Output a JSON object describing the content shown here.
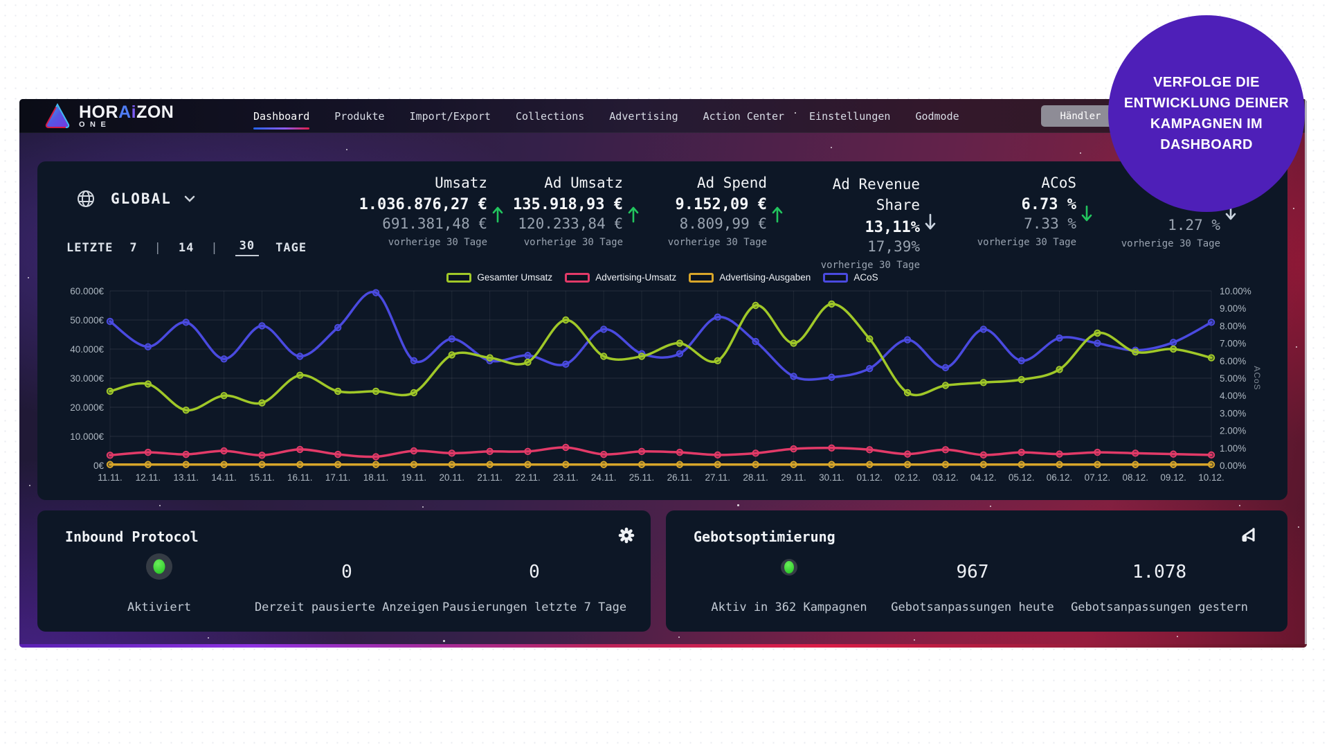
{
  "brand": {
    "name_pre": "HOR",
    "accent_a": "A",
    "accent_i": "i",
    "name_post": "ZON",
    "subtitle": "ONE"
  },
  "nav": {
    "items": [
      {
        "label": "Dashboard",
        "active": true
      },
      {
        "label": "Produkte",
        "active": false
      },
      {
        "label": "Import/Export",
        "active": false
      },
      {
        "label": "Collections",
        "active": false
      },
      {
        "label": "Advertising",
        "active": false
      },
      {
        "label": "Action Center",
        "active": false
      },
      {
        "label": "Einstellungen",
        "active": false
      },
      {
        "label": "Godmode",
        "active": false
      }
    ],
    "merchant_button": "Händler"
  },
  "promo": {
    "text": "VERFOLGE DIE ENTWICKLUNG DEINER KAMPAGNEN IM DASHBOARD",
    "bg": "#4e1fb8"
  },
  "scope": {
    "label": "GLOBAL"
  },
  "range": {
    "prefix": "LETZTE",
    "options": [
      "7",
      "14",
      "30"
    ],
    "active": "30",
    "suffix": "TAGE"
  },
  "stats": [
    {
      "title": "Umsatz",
      "value": "1.036.876,27 €",
      "prev": "691.381,48 €",
      "caption": "vorherige 30 Tage",
      "trend": "up",
      "trend_color": "#22c55e"
    },
    {
      "title": "Ad Umsatz",
      "value": "135.918,93 €",
      "prev": "120.233,84 €",
      "caption": "vorherige 30 Tage",
      "trend": "up",
      "trend_color": "#22c55e"
    },
    {
      "title": "Ad Spend",
      "value": "9.152,09 €",
      "prev": "8.809,99 €",
      "caption": "vorherige 30 Tage",
      "trend": "up",
      "trend_color": "#22c55e"
    },
    {
      "title": "Ad Revenue Share",
      "value": "13,11%",
      "prev": "17,39%",
      "caption": "vorherige 30 Tage",
      "trend": "down",
      "trend_color": "#cbd5e1",
      "tall": true
    },
    {
      "title": "ACoS",
      "value": "6.73 %",
      "prev": "7.33 %",
      "caption": "vorherige 30 Tage",
      "trend": "down",
      "trend_color": "#22c55e"
    },
    {
      "title": "",
      "value": "",
      "prev": "1.27 %",
      "caption": "vorherige 30 Tage",
      "trend": "down",
      "trend_color": "#cbd5e1",
      "partial": true
    }
  ],
  "chart_data": {
    "type": "line",
    "x": [
      "11.11.",
      "12.11.",
      "13.11.",
      "14.11.",
      "15.11.",
      "16.11.",
      "17.11.",
      "18.11.",
      "19.11.",
      "20.11.",
      "21.11.",
      "22.11.",
      "23.11.",
      "24.11.",
      "25.11.",
      "26.11.",
      "27.11.",
      "28.11.",
      "29.11.",
      "30.11.",
      "01.12.",
      "02.12.",
      "03.12.",
      "04.12.",
      "05.12.",
      "06.12.",
      "07.12.",
      "08.12.",
      "09.12.",
      "10.12."
    ],
    "series": [
      {
        "name": "Gesamter Umsatz",
        "color": "#a0c828",
        "axis": "left",
        "values": [
          25500,
          28000,
          19000,
          24000,
          21500,
          31000,
          25500,
          25500,
          25000,
          38000,
          37000,
          35500,
          50000,
          37500,
          37500,
          42000,
          36000,
          55000,
          42000,
          55500,
          43500,
          25000,
          27500,
          28500,
          29500,
          33000,
          45500,
          39000,
          40000,
          37000
        ]
      },
      {
        "name": "Advertising-Umsatz",
        "color": "#e23a68",
        "axis": "left",
        "values": [
          3500,
          4500,
          3800,
          5000,
          3500,
          5500,
          3800,
          3000,
          5000,
          4200,
          4800,
          4800,
          6200,
          3800,
          4800,
          4500,
          3600,
          4200,
          5700,
          6000,
          5400,
          3900,
          5400,
          3600,
          4500,
          3900,
          4500,
          4200,
          3900,
          3600
        ]
      },
      {
        "name": "Advertising-Ausgaben",
        "color": "#d8a62a",
        "axis": "left",
        "values": [
          300,
          300,
          300,
          300,
          300,
          300,
          300,
          300,
          300,
          300,
          300,
          300,
          300,
          300,
          300,
          300,
          300,
          300,
          300,
          300,
          300,
          300,
          300,
          300,
          300,
          300,
          300,
          300,
          300,
          300
        ]
      },
      {
        "name": "ACoS",
        "color": "#4a4ae0",
        "axis": "right",
        "values": [
          8.25,
          6.8,
          8.2,
          6.1,
          8.0,
          6.25,
          7.9,
          9.9,
          6.0,
          7.25,
          6.0,
          6.3,
          5.8,
          7.8,
          6.4,
          6.4,
          8.5,
          7.1,
          5.1,
          5.05,
          5.55,
          7.2,
          5.6,
          7.8,
          6.0,
          7.3,
          7.0,
          6.6,
          7.05,
          8.2
        ]
      }
    ],
    "ylim_left": [
      0,
      60000
    ],
    "ylim_right": [
      0,
      10
    ],
    "left_ticks": [
      "0€",
      "10.000€",
      "20.000€",
      "30.000€",
      "40.000€",
      "50.000€",
      "60.000€"
    ],
    "right_ticks": [
      "0.00%",
      "1.00%",
      "2.00%",
      "3.00%",
      "4.00%",
      "5.00%",
      "6.00%",
      "7.00%",
      "8.00%",
      "9.00%",
      "10.00%"
    ],
    "right_axis_label": "ACoS",
    "grid": true,
    "legend_position": "top"
  },
  "cards": [
    {
      "title": "Inbound Protocol",
      "icon": "gear",
      "cols": [
        {
          "type": "dot",
          "label": "Aktiviert"
        },
        {
          "type": "value",
          "value": "0",
          "label": "Derzeit pausierte Anzeigen"
        },
        {
          "type": "value",
          "value": "0",
          "label": "Pausierungen letzte 7 Tage"
        }
      ]
    },
    {
      "title": "Gebotsoptimierung",
      "icon": "megaphone",
      "cols": [
        {
          "type": "dot",
          "label": "Aktiv in 362 Kampagnen"
        },
        {
          "type": "value",
          "value": "967",
          "label": "Gebotsanpassungen heute"
        },
        {
          "type": "value",
          "value": "1.078",
          "label": "Gebotsanpassungen gestern"
        }
      ]
    }
  ]
}
